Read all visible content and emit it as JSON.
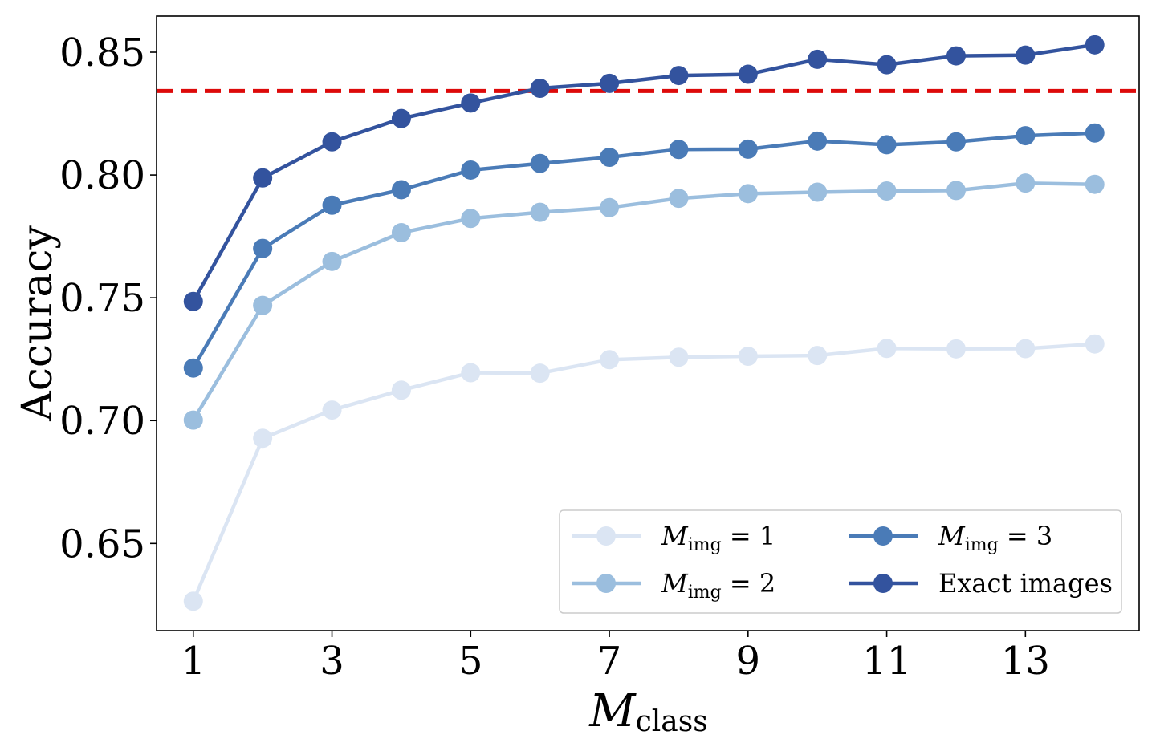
{
  "chart_data": {
    "type": "line",
    "title": "",
    "xlabel": {
      "main": "M",
      "sub": "class"
    },
    "ylabel": "Accuracy",
    "x": [
      1,
      2,
      3,
      4,
      5,
      6,
      7,
      8,
      9,
      10,
      11,
      12,
      13,
      14
    ],
    "xticks": [
      1,
      3,
      5,
      7,
      9,
      11,
      13
    ],
    "xtick_labels": [
      "1",
      "3",
      "5",
      "7",
      "9",
      "11",
      "13"
    ],
    "yticks": [
      0.65,
      0.7,
      0.75,
      0.8,
      0.85
    ],
    "ytick_labels": [
      "0.65",
      "0.70",
      "0.75",
      "0.80",
      "0.85"
    ],
    "xlim": [
      0.47,
      14.64
    ],
    "ylim": [
      0.6145,
      0.8647
    ],
    "grid": false,
    "legend_position": "bottom-right",
    "reference_line": {
      "y": 0.8342,
      "color": "#dd0a0a",
      "style": "dashed"
    },
    "series": [
      {
        "name": "M_img = 1",
        "legend": {
          "main": "M",
          "sub": "img",
          "rest": " = 1"
        },
        "color": "#dbe5f3",
        "values": [
          0.6265,
          0.6928,
          0.7043,
          0.7124,
          0.7195,
          0.7193,
          0.7248,
          0.7258,
          0.7262,
          0.7265,
          0.7294,
          0.7292,
          0.7293,
          0.7312
        ]
      },
      {
        "name": "M_img = 2",
        "legend": {
          "main": "M",
          "sub": "img",
          "rest": " = 2"
        },
        "color": "#9bbede",
        "values": [
          0.7002,
          0.7469,
          0.7648,
          0.7765,
          0.7823,
          0.7848,
          0.7867,
          0.7905,
          0.7924,
          0.793,
          0.7935,
          0.7937,
          0.7967,
          0.7962
        ]
      },
      {
        "name": "M_img = 3",
        "legend": {
          "main": "M",
          "sub": "img",
          "rest": " = 3"
        },
        "color": "#4a7bb7",
        "values": [
          0.7214,
          0.7701,
          0.7877,
          0.794,
          0.802,
          0.8047,
          0.8072,
          0.8104,
          0.8105,
          0.8138,
          0.8123,
          0.8135,
          0.816,
          0.8171
        ]
      },
      {
        "name": "Exact images",
        "legend": {
          "main": "Exact images",
          "sub": "",
          "rest": ""
        },
        "color": "#33539e",
        "values": [
          0.7485,
          0.7988,
          0.8135,
          0.823,
          0.8293,
          0.8353,
          0.8373,
          0.8405,
          0.841,
          0.8471,
          0.8449,
          0.8485,
          0.8488,
          0.853
        ]
      }
    ]
  }
}
